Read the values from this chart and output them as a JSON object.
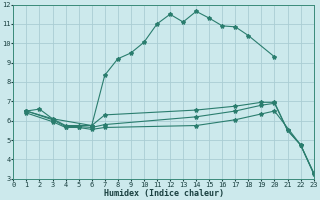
{
  "xlabel": "Humidex (Indice chaleur)",
  "bg_color": "#cce9ec",
  "line_color": "#2a7d6e",
  "grid_color": "#aacdd3",
  "xlim": [
    0,
    23
  ],
  "ylim": [
    3,
    12
  ],
  "xticks": [
    0,
    1,
    2,
    3,
    4,
    5,
    6,
    7,
    8,
    9,
    10,
    11,
    12,
    13,
    14,
    15,
    16,
    17,
    18,
    19,
    20,
    21,
    22,
    23
  ],
  "yticks": [
    3,
    4,
    5,
    6,
    7,
    8,
    9,
    10,
    11,
    12
  ],
  "lines": [
    {
      "x": [
        1,
        2,
        3,
        6,
        7,
        8,
        9,
        10,
        11,
        12,
        13,
        14,
        15,
        16,
        17,
        18,
        20
      ],
      "y": [
        6.5,
        6.6,
        6.1,
        5.75,
        8.35,
        9.2,
        9.5,
        10.05,
        11.0,
        11.5,
        11.1,
        11.65,
        11.3,
        10.9,
        10.85,
        10.4,
        9.3
      ]
    },
    {
      "x": [
        1,
        3,
        4,
        5,
        6,
        7,
        14,
        17,
        19,
        20,
        21,
        22,
        23
      ],
      "y": [
        6.5,
        6.1,
        5.75,
        5.75,
        5.75,
        6.3,
        6.55,
        6.75,
        6.95,
        6.95,
        5.5,
        4.75,
        3.3
      ]
    },
    {
      "x": [
        1,
        3,
        4,
        5,
        6,
        7,
        14,
        17,
        19,
        20,
        21,
        22,
        23
      ],
      "y": [
        6.5,
        6.05,
        5.7,
        5.7,
        5.65,
        5.8,
        6.2,
        6.5,
        6.8,
        6.9,
        5.5,
        4.75,
        3.3
      ]
    },
    {
      "x": [
        1,
        3,
        4,
        5,
        6,
        7,
        14,
        17,
        19,
        20,
        22,
        23
      ],
      "y": [
        6.4,
        5.95,
        5.65,
        5.65,
        5.55,
        5.65,
        5.75,
        6.05,
        6.35,
        6.5,
        4.75,
        3.25
      ]
    }
  ]
}
